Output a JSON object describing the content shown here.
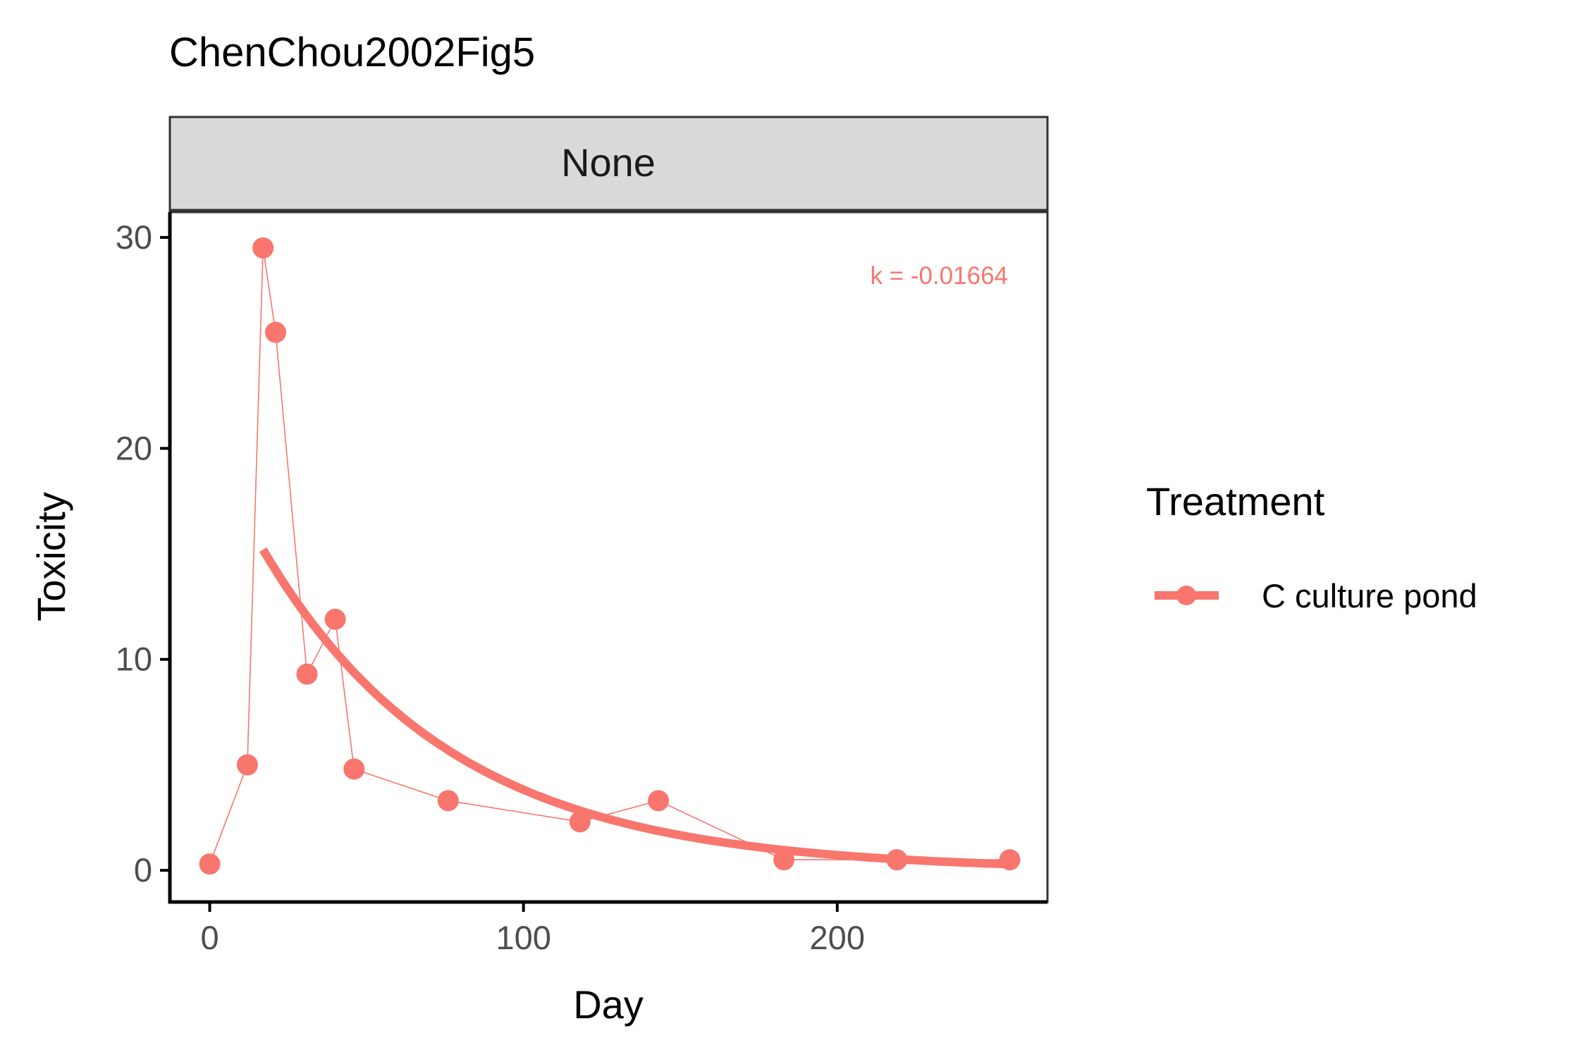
{
  "colors": {
    "series": "#F8766D",
    "strip_fill": "#D9D9D9",
    "panel_border": "#333333"
  },
  "chart_data": {
    "type": "line",
    "title": "ChenChou2002Fig5",
    "facet": "None",
    "xlabel": "Day",
    "ylabel": "Toxicity",
    "xlim": [
      -12.7,
      267
    ],
    "ylim": [
      -1.5,
      31.2
    ],
    "xticks": [
      0,
      100,
      200
    ],
    "yticks": [
      0,
      10,
      20,
      30
    ],
    "grid": false,
    "legend": {
      "title": "Treatment",
      "position": "right"
    },
    "series": [
      {
        "name": "C culture pond",
        "x": [
          0,
          12,
          17,
          21,
          31,
          40,
          46,
          76,
          118,
          143,
          183,
          219,
          255
        ],
        "y": [
          0.3,
          5.0,
          29.5,
          25.5,
          9.3,
          11.9,
          4.8,
          3.3,
          2.3,
          3.3,
          0.5,
          0.5,
          0.5
        ]
      }
    ],
    "fit": {
      "series": "C culture pond",
      "k": -0.01664,
      "label": "k = -0.01664",
      "x_start": 17,
      "x_end": 255,
      "y_start": 15.2
    }
  }
}
